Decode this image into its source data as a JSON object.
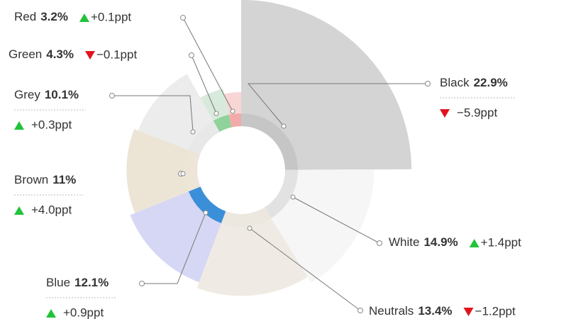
{
  "chart_data": {
    "type": "pie",
    "categories": [
      "Black",
      "White",
      "Neutrals",
      "Blue",
      "Brown",
      "Grey",
      "Green",
      "Red"
    ],
    "values": [
      22.9,
      14.9,
      13.4,
      12.1,
      11,
      10.1,
      4.3,
      3.2
    ],
    "value_labels": [
      "22.9%",
      "14.9%",
      "13.4%",
      "12.1%",
      "11%",
      "10.1%",
      "4.3%",
      "3.2%"
    ],
    "changes": [
      {
        "value": -5.9,
        "label": "−5.9ppt"
      },
      {
        "value": 1.4,
        "label": "+1.4ppt"
      },
      {
        "value": -1.2,
        "label": "−1.2ppt"
      },
      {
        "value": 0.9,
        "label": "+0.9ppt"
      },
      {
        "value": 4.0,
        "label": "+4.0ppt"
      },
      {
        "value": 0.3,
        "label": "+0.3ppt"
      },
      {
        "value": -0.1,
        "label": "−0.1ppt"
      },
      {
        "value": 0.1,
        "label": "+0.1ppt"
      }
    ],
    "colors": [
      "#d4d4d4",
      "#f6f6f6",
      "#efebe4",
      "#d5d7f4",
      "#ece5d6",
      "#ececec",
      "#d8eadb",
      "#f8d6d6"
    ],
    "ring_colors": [
      "#c6c6c6",
      "#e2e2e2",
      "#ece7df",
      "#3a8fd8",
      "#ede6d8",
      "#e8e8e8",
      "#8fd39b",
      "#f2aaaa"
    ]
  }
}
